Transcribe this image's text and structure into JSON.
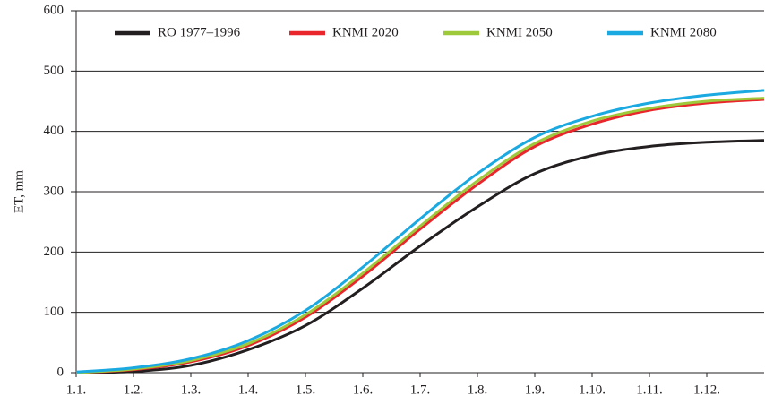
{
  "chart_data": {
    "type": "line",
    "y_label": "ET, mm",
    "categories": [
      "1.1.",
      "1.2.",
      "1.3.",
      "1.4.",
      "1.5.",
      "1.6.",
      "1.7.",
      "1.8.",
      "1.9.",
      "1.10.",
      "1.11.",
      "1.12.",
      null
    ],
    "series": [
      {
        "name": "RO 1977–1996",
        "color": "#231f20",
        "values": [
          0,
          2,
          12,
          38,
          78,
          140,
          210,
          275,
          330,
          360,
          375,
          382,
          385
        ]
      },
      {
        "name": "KNMI 2020",
        "color": "#e8262b",
        "values": [
          0,
          5,
          18,
          45,
          92,
          160,
          238,
          312,
          375,
          412,
          435,
          447,
          453
        ]
      },
      {
        "name": "KNMI 2050",
        "color": "#9dc93b",
        "values": [
          0,
          6,
          20,
          48,
          96,
          165,
          243,
          318,
          380,
          417,
          438,
          450,
          455
        ]
      },
      {
        "name": "KNMI 2080",
        "color": "#1ba9e1",
        "values": [
          1,
          8,
          23,
          53,
          103,
          175,
          255,
          330,
          390,
          425,
          447,
          460,
          468
        ]
      }
    ],
    "ylim": [
      0,
      600
    ],
    "yticks": [
      0,
      100,
      200,
      300,
      400,
      500,
      600
    ],
    "grid": true,
    "legend": "top"
  }
}
